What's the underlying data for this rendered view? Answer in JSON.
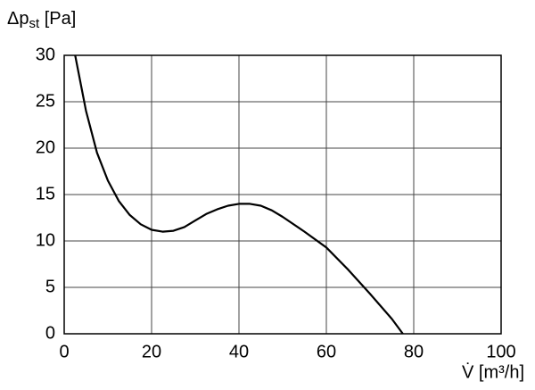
{
  "chart_data": {
    "type": "line",
    "ylabel": [
      "Δp",
      "st",
      " [Pa]"
    ],
    "xlabel": "V̇ [m³/h]",
    "x": [
      2.5,
      5,
      7.5,
      10,
      12.5,
      15,
      17.5,
      20,
      22.5,
      25,
      27.5,
      30,
      32.5,
      35,
      37.5,
      40,
      42.5,
      45,
      47.5,
      50,
      55,
      60,
      65,
      70,
      75,
      77.5
    ],
    "values": [
      30,
      24,
      19.5,
      16.5,
      14.3,
      12.8,
      11.8,
      11.2,
      11,
      11.1,
      11.5,
      12.2,
      12.9,
      13.4,
      13.8,
      14,
      14,
      13.8,
      13.3,
      12.6,
      11,
      9.3,
      6.9,
      4.3,
      1.6,
      0
    ],
    "color": "#000000",
    "xlim": [
      0,
      100
    ],
    "xticks": [
      0,
      20,
      40,
      60,
      80,
      100
    ],
    "ylim": [
      0,
      30
    ],
    "yticks": [
      0,
      5,
      10,
      15,
      20,
      25,
      30
    ],
    "grid": true
  }
}
